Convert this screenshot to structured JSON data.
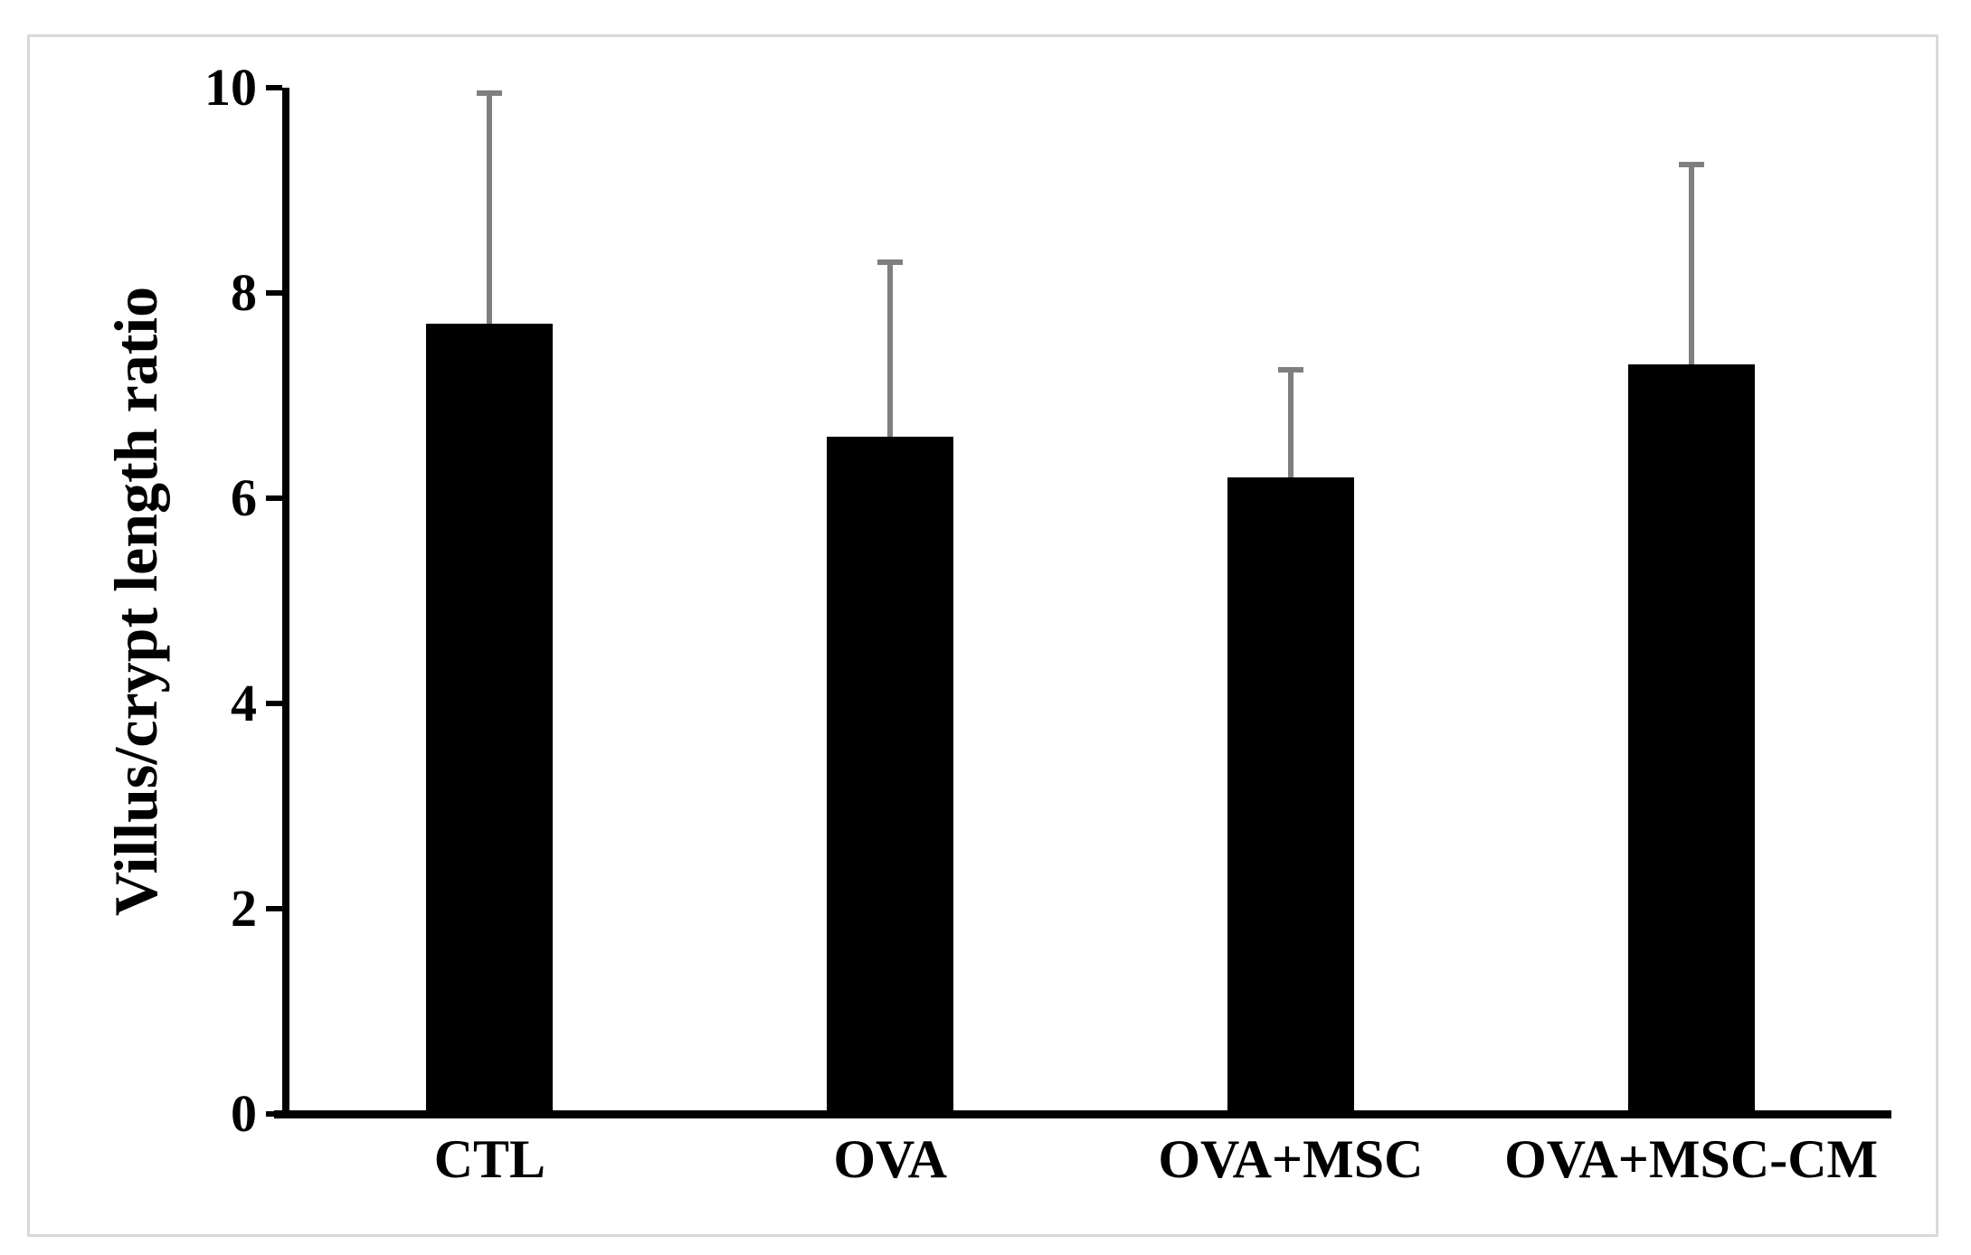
{
  "figure": {
    "background_color": "#ffffff",
    "frame_border_color": "#d9d9d9"
  },
  "chart_data": {
    "type": "bar",
    "title": "",
    "xlabel": "",
    "ylabel": "Villus/crypt length ratio",
    "categories": [
      "CTL",
      "OVA",
      "OVA+MSC",
      "OVA+MSC-CM"
    ],
    "values": [
      7.7,
      6.6,
      6.2,
      7.3
    ],
    "errors_upper": [
      2.25,
      1.7,
      1.05,
      1.95
    ],
    "yticks": [
      "0",
      "2",
      "4",
      "6",
      "8",
      "10"
    ],
    "ylim": [
      0,
      10
    ],
    "grid": false,
    "legend": null,
    "bar_color": "#000000",
    "error_bar_color": "#7f7f7f",
    "axis_color": "#000000",
    "tick_label_color": "#000000"
  }
}
